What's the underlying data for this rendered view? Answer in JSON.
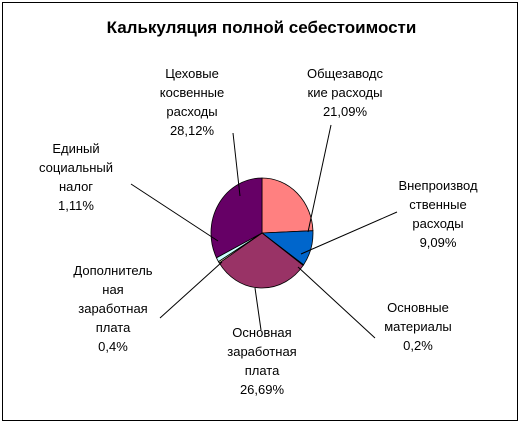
{
  "chart_data": {
    "type": "pie",
    "title": "Калькуляция полной себестоимости",
    "slices": [
      {
        "name": "Общезаводские расходы",
        "label_lines": [
          "Общезаводс",
          "кие расходы"
        ],
        "value_text": "21,09%",
        "value": 21.09,
        "color": "#FF8080"
      },
      {
        "name": "Внепроизводственные расходы",
        "label_lines": [
          "Внепроизвод",
          "ственные",
          "расходы"
        ],
        "value_text": "9,09%",
        "value": 9.09,
        "color": "#0066CC"
      },
      {
        "name": "Основные материалы",
        "label_lines": [
          "Основные",
          "материалы"
        ],
        "value_text": "0,2%",
        "value": 0.2,
        "color": "#000080"
      },
      {
        "name": "Основная заработная плата",
        "label_lines": [
          "Основная",
          "заработная",
          "плата"
        ],
        "value_text": "26,69%",
        "value": 26.69,
        "color": "#993366"
      },
      {
        "name": "Дополнительная заработная плата",
        "label_lines": [
          "Дополнитель",
          "ная",
          "заработная",
          "плата"
        ],
        "value_text": "0,4%",
        "value": 0.4,
        "color": "#FFFFCC"
      },
      {
        "name": "Единый социальный налог",
        "label_lines": [
          "Единый",
          "социальный",
          "налог"
        ],
        "value_text": "1,11%",
        "value": 1.11,
        "color": "#CCFFFF"
      },
      {
        "name": "Цеховые косвенные расходы",
        "label_lines": [
          "Цеховые",
          "косвенные",
          "расходы"
        ],
        "value_text": "28,12%",
        "value": 28.12,
        "color": "#660066"
      }
    ],
    "legend": "none",
    "data_labels": "category name and percent"
  }
}
